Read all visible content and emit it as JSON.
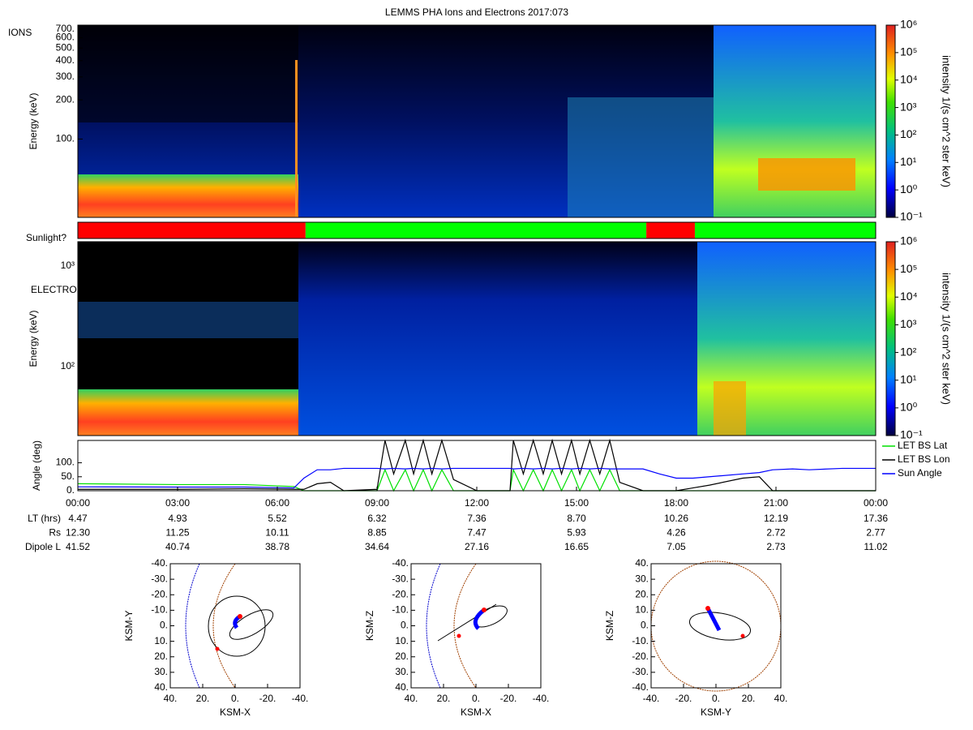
{
  "title": "LEMMS PHA Ions and Electrons  2017:073",
  "chart_data": [
    {
      "type": "spectrogram",
      "panel_label": "IONS",
      "ylabel": "Energy (keV)",
      "log_scale": true,
      "ylim": [
        25,
        750
      ],
      "yticks": [
        {
          "value": 100,
          "label": "100."
        },
        {
          "value": 200,
          "label": "200."
        },
        {
          "value": 300,
          "label": "300."
        },
        {
          "value": 400,
          "label": "400."
        },
        {
          "value": 500,
          "label": "500."
        },
        {
          "value": 600,
          "label": "600."
        },
        {
          "value": 700,
          "label": "700."
        }
      ],
      "colorbar_label": "intensity 1/(s cm^2 ster keV)",
      "colorbar_lim": [
        0.1,
        1000000
      ],
      "colorbar_ticks": [
        {
          "value": 0.1,
          "label": "10⁻¹"
        },
        {
          "value": 1,
          "label": "10⁰"
        },
        {
          "value": 10,
          "label": "10¹"
        },
        {
          "value": 100,
          "label": "10²"
        },
        {
          "value": 1000,
          "label": "10³"
        },
        {
          "value": 10000,
          "label": "10⁴"
        },
        {
          "value": 100000,
          "label": "10⁵"
        },
        {
          "value": 1000000,
          "label": "10⁶"
        }
      ]
    },
    {
      "type": "timeline",
      "label": "Sunlight?",
      "xlim": [
        0,
        24
      ],
      "segments": [
        {
          "start": 0,
          "end": 6.85,
          "color": "#ff0000"
        },
        {
          "start": 6.85,
          "end": 17.1,
          "color": "#00ff00"
        },
        {
          "start": 17.1,
          "end": 18.56,
          "color": "#ff0000"
        },
        {
          "start": 18.56,
          "end": 24,
          "color": "#00ff00"
        }
      ]
    },
    {
      "type": "spectrogram",
      "panel_label": "ELECTRONS",
      "ylabel": "Energy (keV)",
      "log_scale": true,
      "ylim": [
        20.6,
        1745
      ],
      "yticks": [
        {
          "value": 100,
          "label": "10²"
        },
        {
          "value": 1000,
          "label": "10³"
        }
      ],
      "colorbar_label": "intensity 1/(s cm^2 ster keV)",
      "colorbar_lim": [
        0.1,
        1000000
      ],
      "colorbar_ticks": [
        {
          "value": 0.1,
          "label": "10⁻¹"
        },
        {
          "value": 1,
          "label": "10⁰"
        },
        {
          "value": 10,
          "label": "10¹"
        },
        {
          "value": 100,
          "label": "10²"
        },
        {
          "value": 1000,
          "label": "10³"
        },
        {
          "value": 10000,
          "label": "10⁴"
        },
        {
          "value": 100000,
          "label": "10⁵"
        },
        {
          "value": 1000000,
          "label": "10⁶"
        }
      ]
    },
    {
      "type": "line",
      "ylabel": "Angle (deg)",
      "xlim": [
        0,
        24
      ],
      "ylim": [
        0,
        180
      ],
      "xticks": [
        {
          "value": 0,
          "label": "00:00"
        },
        {
          "value": 3,
          "label": "03:00"
        },
        {
          "value": 6,
          "label": "06:00"
        },
        {
          "value": 9,
          "label": "09:00"
        },
        {
          "value": 12,
          "label": "12:00"
        },
        {
          "value": 15,
          "label": "15:00"
        },
        {
          "value": 18,
          "label": "18:00"
        },
        {
          "value": 21,
          "label": "21:00"
        },
        {
          "value": 24,
          "label": "00:00"
        }
      ],
      "yticks": [
        {
          "value": 0,
          "label": "0."
        },
        {
          "value": 50,
          "label": "50."
        },
        {
          "value": 100,
          "label": "100."
        }
      ],
      "x": [
        0,
        3,
        5,
        6.5,
        6.8,
        7.2,
        7.6,
        8,
        9,
        9.24,
        9.5,
        9.85,
        10.1,
        10.39,
        10.65,
        10.95,
        11.3,
        12,
        13,
        13.1,
        13.4,
        13.7,
        14,
        14.27,
        14.55,
        14.85,
        15.1,
        15.4,
        15.7,
        16,
        16.3,
        17,
        17.5,
        18,
        18.5,
        19,
        20,
        20.5,
        20.9,
        21.5,
        22,
        23,
        24
      ],
      "series": [
        {
          "name": "LET BS Lat",
          "color": "#00e000",
          "values": [
            25,
            22,
            22,
            15,
            0,
            0,
            0,
            0,
            0,
            75,
            0,
            75,
            0,
            75,
            0,
            75,
            0,
            0,
            0,
            75,
            0,
            75,
            0,
            75,
            0,
            75,
            0,
            75,
            0,
            75,
            0,
            0,
            0,
            0,
            0,
            0,
            0,
            0,
            0,
            0,
            0,
            0,
            0
          ]
        },
        {
          "name": "LET BS Lon",
          "color": "#000000",
          "values": [
            5,
            5,
            7,
            5,
            5,
            25,
            30,
            0,
            5,
            180,
            60,
            180,
            60,
            180,
            60,
            180,
            40,
            0,
            0,
            180,
            60,
            180,
            60,
            180,
            60,
            180,
            60,
            180,
            60,
            180,
            30,
            0,
            0,
            0,
            10,
            20,
            45,
            50,
            0,
            0,
            0,
            0,
            0
          ]
        },
        {
          "name": "Sun Angle",
          "color": "#0000ff",
          "values": [
            14,
            13,
            13,
            10,
            45,
            75,
            75,
            80,
            80,
            78,
            80,
            78,
            80,
            78,
            80,
            78,
            80,
            80,
            80,
            78,
            80,
            78,
            80,
            78,
            80,
            78,
            80,
            78,
            80,
            78,
            78,
            78,
            60,
            45,
            45,
            50,
            60,
            65,
            75,
            78,
            75,
            80,
            80
          ]
        }
      ]
    },
    {
      "type": "orbit",
      "xlabel": "KSM-X",
      "ylabel": "KSM-Y",
      "xlim": [
        40,
        -40
      ],
      "ylim": [
        -40,
        40
      ],
      "xticks": [
        {
          "value": 40,
          "label": "40."
        },
        {
          "value": 20,
          "label": "20."
        },
        {
          "value": 0,
          "label": "0."
        },
        {
          "value": -20,
          "label": "-20."
        },
        {
          "value": -40,
          "label": "-40."
        }
      ],
      "yticks": [
        {
          "value": -40,
          "label": "-40."
        },
        {
          "value": -30,
          "label": "-30."
        },
        {
          "value": -20,
          "label": "-20."
        },
        {
          "value": -10,
          "label": "-10."
        },
        {
          "value": 0,
          "label": "0."
        },
        {
          "value": 10,
          "label": "10."
        },
        {
          "value": 20,
          "label": "20."
        },
        {
          "value": 30,
          "label": "30."
        },
        {
          "value": 40,
          "label": "40."
        }
      ]
    },
    {
      "type": "orbit",
      "xlabel": "KSM-X",
      "ylabel": "KSM-Z",
      "xlim": [
        40,
        -40
      ],
      "ylim": [
        -40,
        40
      ],
      "xticks": [
        {
          "value": 40,
          "label": "40."
        },
        {
          "value": 20,
          "label": "20."
        },
        {
          "value": 0,
          "label": "0."
        },
        {
          "value": -20,
          "label": "-20."
        },
        {
          "value": -40,
          "label": "-40."
        }
      ],
      "yticks": [
        {
          "value": 40,
          "label": "40."
        },
        {
          "value": 30,
          "label": "30."
        },
        {
          "value": 20,
          "label": "20."
        },
        {
          "value": 10,
          "label": "10."
        },
        {
          "value": 0,
          "label": "0."
        },
        {
          "value": -10,
          "label": "-10."
        },
        {
          "value": -20,
          "label": "-20."
        },
        {
          "value": -30,
          "label": "-30."
        },
        {
          "value": -40,
          "label": "-40."
        }
      ]
    },
    {
      "type": "orbit",
      "xlabel": "KSM-Y",
      "ylabel": "KSM-Z",
      "xlim": [
        -40,
        40
      ],
      "ylim": [
        40,
        -40
      ],
      "xticks": [
        {
          "value": -40,
          "label": "-40."
        },
        {
          "value": -20,
          "label": "-20."
        },
        {
          "value": 0,
          "label": "0."
        },
        {
          "value": 20,
          "label": "20."
        },
        {
          "value": 40,
          "label": "40."
        }
      ],
      "yticks": [
        {
          "value": 40,
          "label": "40."
        },
        {
          "value": 30,
          "label": "30."
        },
        {
          "value": 20,
          "label": "20."
        },
        {
          "value": 10,
          "label": "10."
        },
        {
          "value": 0,
          "label": "0."
        },
        {
          "value": -10,
          "label": "-10."
        },
        {
          "value": -20,
          "label": "-20."
        },
        {
          "value": -30,
          "label": "-30."
        },
        {
          "value": -40,
          "label": "-40."
        }
      ]
    }
  ],
  "ephemeris": [
    {
      "label": "LT (hrs)",
      "values": [
        "4.47",
        "4.93",
        "5.52",
        "6.32",
        "7.36",
        "8.70",
        "10.26",
        "12.19",
        "17.36"
      ]
    },
    {
      "label": "Rs",
      "values": [
        "12.30",
        "11.25",
        "10.11",
        "8.85",
        "7.47",
        "5.93",
        "4.26",
        "2.72",
        "2.77"
      ]
    },
    {
      "label": "Dipole L",
      "values": [
        "41.52",
        "40.74",
        "38.78",
        "34.64",
        "27.16",
        "16.65",
        "7.05",
        "2.73",
        "11.02"
      ]
    }
  ]
}
